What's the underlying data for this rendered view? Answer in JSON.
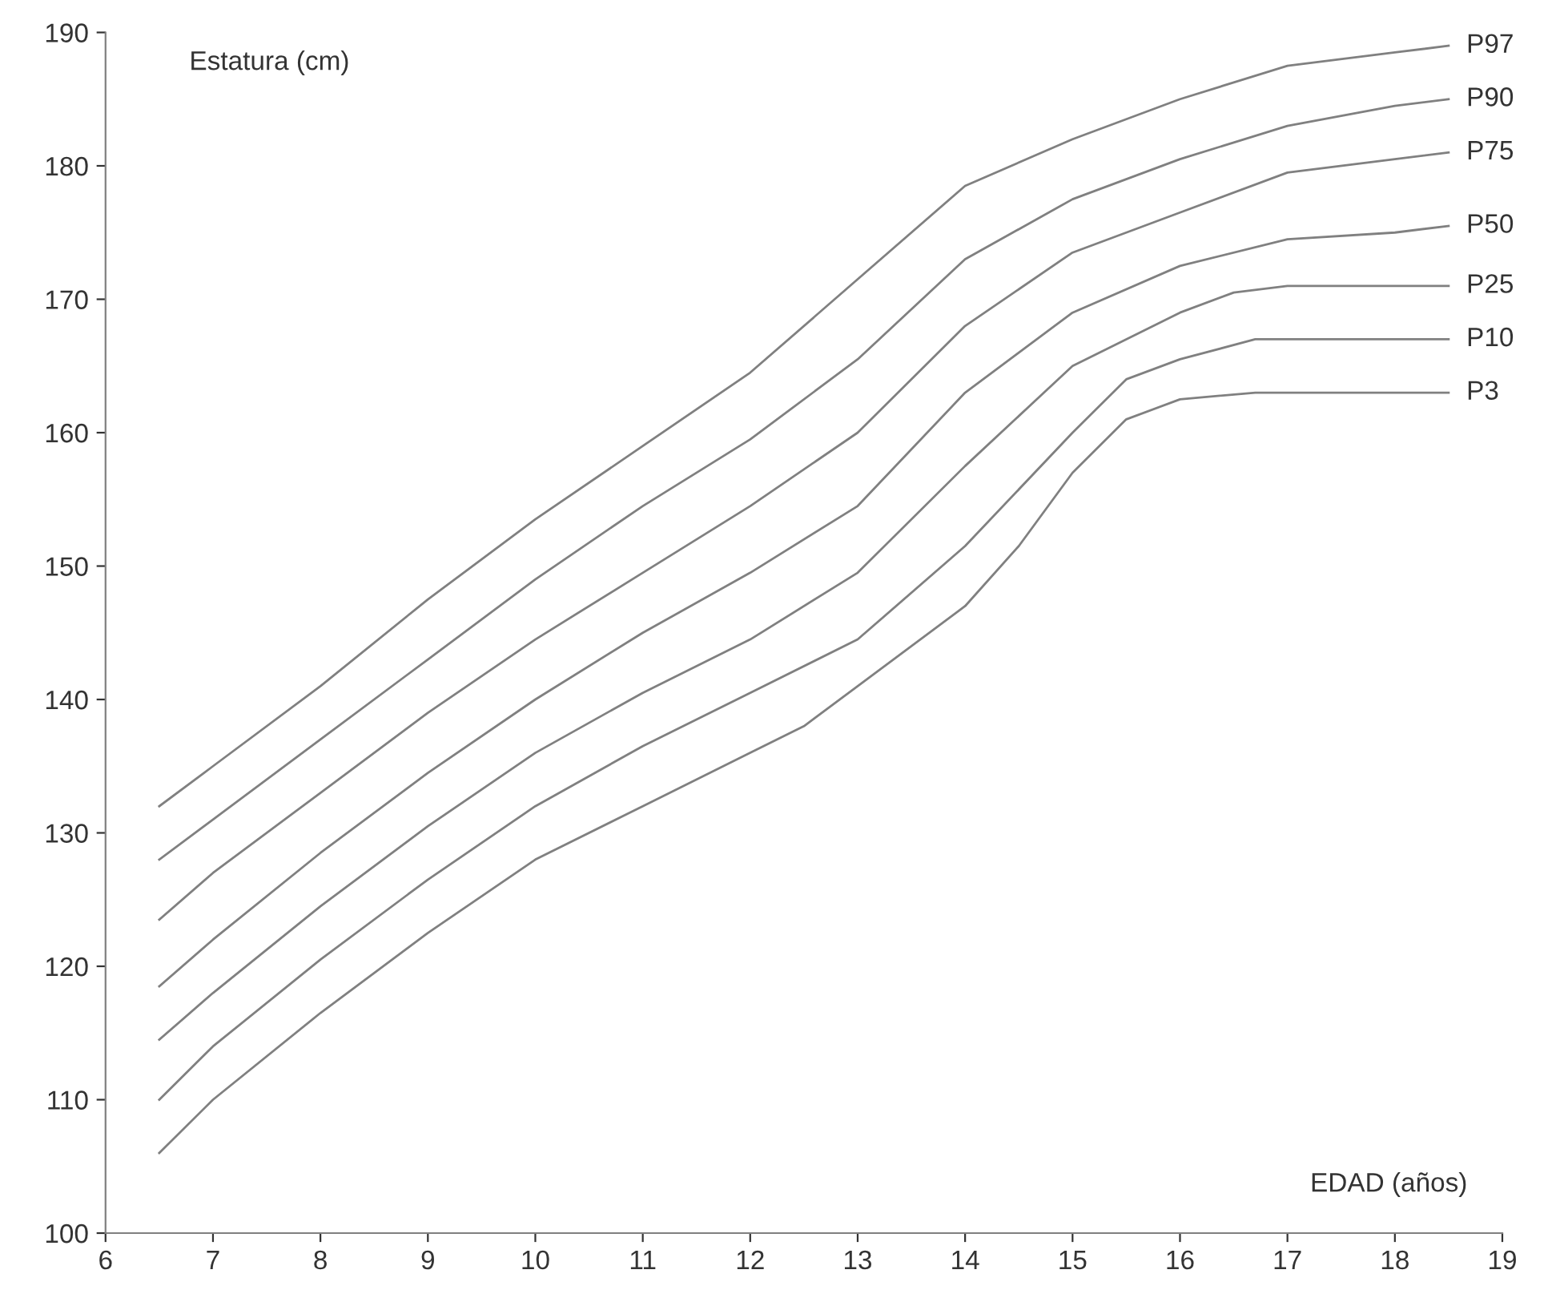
{
  "chart_data": {
    "type": "line",
    "xlabel": "EDAD (años)",
    "ylabel": "Estatura (cm)",
    "xlim": [
      6,
      19
    ],
    "ylim": [
      100,
      190
    ],
    "xticks": [
      6,
      7,
      8,
      9,
      10,
      11,
      12,
      13,
      14,
      15,
      16,
      17,
      18,
      19
    ],
    "yticks": [
      100,
      110,
      120,
      130,
      140,
      150,
      160,
      170,
      180,
      190
    ],
    "grid": false,
    "legend": false,
    "marker": "none",
    "line_style": "solid",
    "series": [
      {
        "name": "P97",
        "color": "#808080",
        "x": [
          6.5,
          7,
          8,
          9,
          10,
          11,
          12,
          13,
          14,
          15,
          16,
          17,
          18,
          18.5
        ],
        "values": [
          132,
          135,
          141,
          147.5,
          153.5,
          159,
          164.5,
          171.5,
          178.5,
          182,
          185,
          187.5,
          188.5,
          189
        ]
      },
      {
        "name": "P90",
        "color": "#808080",
        "x": [
          6.5,
          7,
          8,
          9,
          10,
          11,
          12,
          13,
          14,
          15,
          16,
          17,
          18,
          18.5
        ],
        "values": [
          128,
          131,
          137,
          143,
          149,
          154.5,
          159.5,
          165.5,
          173,
          177.5,
          180.5,
          183,
          184.5,
          185
        ]
      },
      {
        "name": "P75",
        "color": "#808080",
        "x": [
          6.5,
          7,
          8,
          9,
          10,
          11,
          12,
          13,
          14,
          15,
          16,
          17,
          18,
          18.5
        ],
        "values": [
          123.5,
          127,
          133,
          139,
          144.5,
          149.5,
          154.5,
          160,
          168,
          173.5,
          176.5,
          179.5,
          180.5,
          181
        ]
      },
      {
        "name": "P50",
        "color": "#808080",
        "x": [
          6.5,
          7,
          8,
          9,
          10,
          11,
          12,
          13,
          14,
          15,
          16,
          17,
          18,
          18.5
        ],
        "values": [
          118.5,
          122,
          128.5,
          134.5,
          140,
          145,
          149.5,
          154.5,
          163,
          169,
          172.5,
          174.5,
          175,
          175.5
        ]
      },
      {
        "name": "P25",
        "color": "#808080",
        "x": [
          6.5,
          7,
          8,
          9,
          10,
          11,
          12,
          13,
          14,
          15,
          16,
          16.5,
          17,
          18,
          18.5
        ],
        "values": [
          114.5,
          118,
          124.5,
          130.5,
          136,
          140.5,
          144.5,
          149.5,
          157.5,
          165,
          169,
          170.5,
          171,
          171,
          171
        ]
      },
      {
        "name": "P10",
        "color": "#808080",
        "x": [
          6.5,
          7,
          8,
          9,
          10,
          11,
          12,
          13,
          14,
          15,
          15.5,
          16,
          16.7,
          18.5
        ],
        "values": [
          110,
          114,
          120.5,
          126.5,
          132,
          136.5,
          140.5,
          144.5,
          151.5,
          160,
          164,
          165.5,
          167,
          167
        ]
      },
      {
        "name": "P3",
        "color": "#808080",
        "x": [
          6.5,
          7,
          8,
          9,
          10,
          11,
          12,
          12.5,
          13,
          14,
          14.5,
          15,
          15.5,
          16,
          16.7,
          18.5
        ],
        "values": [
          106,
          110,
          116.5,
          122.5,
          128,
          132,
          136,
          138,
          141,
          147,
          151.5,
          157,
          161,
          162.5,
          163,
          163
        ]
      }
    ]
  }
}
